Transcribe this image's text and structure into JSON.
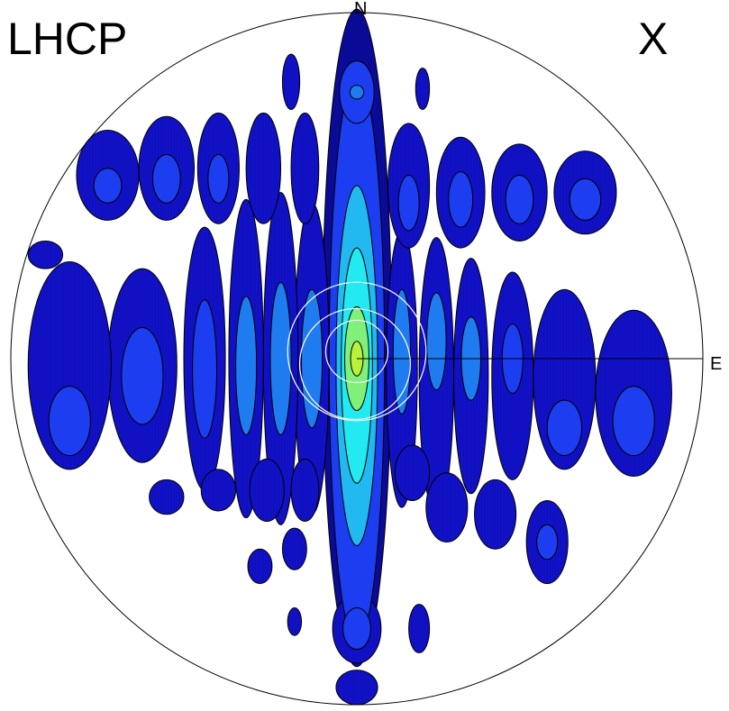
{
  "labels": {
    "polarization": "LHCP",
    "component": "X",
    "north": "N",
    "east": "E"
  },
  "chart_data": {
    "type": "heatmap",
    "projection": "polar-hemisphere",
    "levels": 7,
    "colors": [
      "#0b0b9e",
      "#1212cc",
      "#1c3ef0",
      "#1e7cf0",
      "#22b8f0",
      "#22eaf0",
      "#7ff07a",
      "#b8f03a"
    ],
    "lobes": [
      {
        "dx": 0.0,
        "dy": -0.06,
        "rx": 0.1,
        "ry": 0.95,
        "level": 0
      },
      {
        "dx": 0.0,
        "dy": 0.0,
        "rx": 0.08,
        "ry": 0.82,
        "level": 2
      },
      {
        "dx": 0.0,
        "dy": 0.02,
        "rx": 0.06,
        "ry": 0.52,
        "level": 4
      },
      {
        "dx": 0.0,
        "dy": 0.02,
        "rx": 0.045,
        "ry": 0.34,
        "level": 5
      },
      {
        "dx": 0.0,
        "dy": 0.0,
        "rx": 0.035,
        "ry": 0.15,
        "level": 6
      },
      {
        "dx": 0.0,
        "dy": 0.0,
        "rx": 0.018,
        "ry": 0.05,
        "level": 7
      },
      {
        "dx": -0.13,
        "dy": 0.0,
        "rx": 0.05,
        "ry": 0.45,
        "level": 1
      },
      {
        "dx": -0.13,
        "dy": 0.0,
        "rx": 0.03,
        "ry": 0.2,
        "level": 3
      },
      {
        "dx": -0.22,
        "dy": 0.0,
        "rx": 0.05,
        "ry": 0.48,
        "level": 1
      },
      {
        "dx": -0.22,
        "dy": 0.0,
        "rx": 0.03,
        "ry": 0.22,
        "level": 3
      },
      {
        "dx": -0.32,
        "dy": 0.0,
        "rx": 0.05,
        "ry": 0.46,
        "level": 1
      },
      {
        "dx": -0.32,
        "dy": 0.02,
        "rx": 0.03,
        "ry": 0.2,
        "level": 3
      },
      {
        "dx": -0.44,
        "dy": 0.0,
        "rx": 0.06,
        "ry": 0.38,
        "level": 1
      },
      {
        "dx": -0.44,
        "dy": 0.03,
        "rx": 0.035,
        "ry": 0.2,
        "level": 2
      },
      {
        "dx": -0.62,
        "dy": 0.02,
        "rx": 0.1,
        "ry": 0.28,
        "level": 1
      },
      {
        "dx": -0.62,
        "dy": 0.05,
        "rx": 0.06,
        "ry": 0.14,
        "level": 2
      },
      {
        "dx": -0.83,
        "dy": 0.02,
        "rx": 0.12,
        "ry": 0.3,
        "level": 1
      },
      {
        "dx": -0.83,
        "dy": 0.18,
        "rx": 0.06,
        "ry": 0.1,
        "level": 2
      },
      {
        "dx": 0.13,
        "dy": 0.03,
        "rx": 0.045,
        "ry": 0.4,
        "level": 1
      },
      {
        "dx": 0.13,
        "dy": -0.02,
        "rx": 0.025,
        "ry": 0.18,
        "level": 3
      },
      {
        "dx": 0.23,
        "dy": 0.05,
        "rx": 0.05,
        "ry": 0.4,
        "level": 1
      },
      {
        "dx": 0.23,
        "dy": -0.05,
        "rx": 0.028,
        "ry": 0.14,
        "level": 3
      },
      {
        "dx": 0.33,
        "dy": 0.05,
        "rx": 0.05,
        "ry": 0.34,
        "level": 1
      },
      {
        "dx": 0.33,
        "dy": 0.0,
        "rx": 0.028,
        "ry": 0.12,
        "level": 3
      },
      {
        "dx": 0.45,
        "dy": 0.05,
        "rx": 0.06,
        "ry": 0.3,
        "level": 1
      },
      {
        "dx": 0.45,
        "dy": 0.0,
        "rx": 0.03,
        "ry": 0.1,
        "level": 2
      },
      {
        "dx": 0.6,
        "dy": 0.06,
        "rx": 0.09,
        "ry": 0.26,
        "level": 1
      },
      {
        "dx": 0.6,
        "dy": 0.2,
        "rx": 0.05,
        "ry": 0.08,
        "level": 2
      },
      {
        "dx": 0.8,
        "dy": 0.1,
        "rx": 0.11,
        "ry": 0.24,
        "level": 1
      },
      {
        "dx": 0.8,
        "dy": 0.18,
        "rx": 0.06,
        "ry": 0.1,
        "level": 2
      },
      {
        "dx": -0.72,
        "dy": -0.53,
        "rx": 0.09,
        "ry": 0.13,
        "level": 1
      },
      {
        "dx": -0.72,
        "dy": -0.5,
        "rx": 0.04,
        "ry": 0.05,
        "level": 2
      },
      {
        "dx": -0.55,
        "dy": -0.55,
        "rx": 0.08,
        "ry": 0.15,
        "level": 1
      },
      {
        "dx": -0.55,
        "dy": -0.52,
        "rx": 0.04,
        "ry": 0.07,
        "level": 2
      },
      {
        "dx": -0.4,
        "dy": -0.55,
        "rx": 0.06,
        "ry": 0.16,
        "level": 1
      },
      {
        "dx": -0.4,
        "dy": -0.52,
        "rx": 0.03,
        "ry": 0.07,
        "level": 2
      },
      {
        "dx": -0.27,
        "dy": -0.55,
        "rx": 0.05,
        "ry": 0.16,
        "level": 1
      },
      {
        "dx": -0.15,
        "dy": -0.55,
        "rx": 0.04,
        "ry": 0.16,
        "level": 1
      },
      {
        "dx": 0.15,
        "dy": -0.5,
        "rx": 0.06,
        "ry": 0.18,
        "level": 1
      },
      {
        "dx": 0.15,
        "dy": -0.45,
        "rx": 0.03,
        "ry": 0.08,
        "level": 2
      },
      {
        "dx": 0.3,
        "dy": -0.48,
        "rx": 0.07,
        "ry": 0.16,
        "level": 1
      },
      {
        "dx": 0.3,
        "dy": -0.46,
        "rx": 0.035,
        "ry": 0.08,
        "level": 2
      },
      {
        "dx": 0.47,
        "dy": -0.48,
        "rx": 0.08,
        "ry": 0.14,
        "level": 1
      },
      {
        "dx": 0.47,
        "dy": -0.46,
        "rx": 0.04,
        "ry": 0.07,
        "level": 2
      },
      {
        "dx": 0.66,
        "dy": -0.48,
        "rx": 0.09,
        "ry": 0.12,
        "level": 1
      },
      {
        "dx": 0.66,
        "dy": -0.46,
        "rx": 0.045,
        "ry": 0.06,
        "level": 2
      },
      {
        "dx": -0.55,
        "dy": 0.4,
        "rx": 0.05,
        "ry": 0.05,
        "level": 1
      },
      {
        "dx": -0.4,
        "dy": 0.38,
        "rx": 0.05,
        "ry": 0.06,
        "level": 1
      },
      {
        "dx": -0.26,
        "dy": 0.38,
        "rx": 0.05,
        "ry": 0.09,
        "level": 1
      },
      {
        "dx": -0.15,
        "dy": 0.38,
        "rx": 0.04,
        "ry": 0.09,
        "level": 1
      },
      {
        "dx": 0.16,
        "dy": 0.33,
        "rx": 0.05,
        "ry": 0.08,
        "level": 1
      },
      {
        "dx": 0.26,
        "dy": 0.43,
        "rx": 0.06,
        "ry": 0.1,
        "level": 1
      },
      {
        "dx": 0.4,
        "dy": 0.45,
        "rx": 0.06,
        "ry": 0.1,
        "level": 1
      },
      {
        "dx": 0.55,
        "dy": 0.53,
        "rx": 0.06,
        "ry": 0.12,
        "level": 1
      },
      {
        "dx": 0.55,
        "dy": 0.53,
        "rx": 0.03,
        "ry": 0.05,
        "level": 2
      },
      {
        "dx": -0.28,
        "dy": 0.6,
        "rx": 0.035,
        "ry": 0.05,
        "level": 1
      },
      {
        "dx": -0.18,
        "dy": 0.55,
        "rx": 0.035,
        "ry": 0.06,
        "level": 1
      },
      {
        "dx": -0.9,
        "dy": -0.3,
        "rx": 0.05,
        "ry": 0.04,
        "level": 1
      },
      {
        "dx": -0.19,
        "dy": -0.8,
        "rx": 0.025,
        "ry": 0.08,
        "level": 1
      },
      {
        "dx": 0.19,
        "dy": -0.78,
        "rx": 0.02,
        "ry": 0.06,
        "level": 1
      },
      {
        "dx": -0.18,
        "dy": 0.76,
        "rx": 0.02,
        "ry": 0.04,
        "level": 1
      },
      {
        "dx": 0.18,
        "dy": 0.78,
        "rx": 0.03,
        "ry": 0.07,
        "level": 1
      },
      {
        "dx": 0.0,
        "dy": 0.78,
        "rx": 0.07,
        "ry": 0.1,
        "level": 1
      },
      {
        "dx": 0.0,
        "dy": 0.78,
        "rx": 0.04,
        "ry": 0.06,
        "level": 2
      },
      {
        "dx": 0.0,
        "dy": 0.95,
        "rx": 0.06,
        "ry": 0.05,
        "level": 1
      },
      {
        "dx": 0.0,
        "dy": -0.77,
        "rx": 0.05,
        "ry": 0.09,
        "level": 2
      },
      {
        "dx": 0.0,
        "dy": -0.77,
        "rx": 0.02,
        "ry": 0.02,
        "level": 3
      }
    ],
    "reference_circles": [
      0.09,
      0.2
    ],
    "east_line": true
  }
}
